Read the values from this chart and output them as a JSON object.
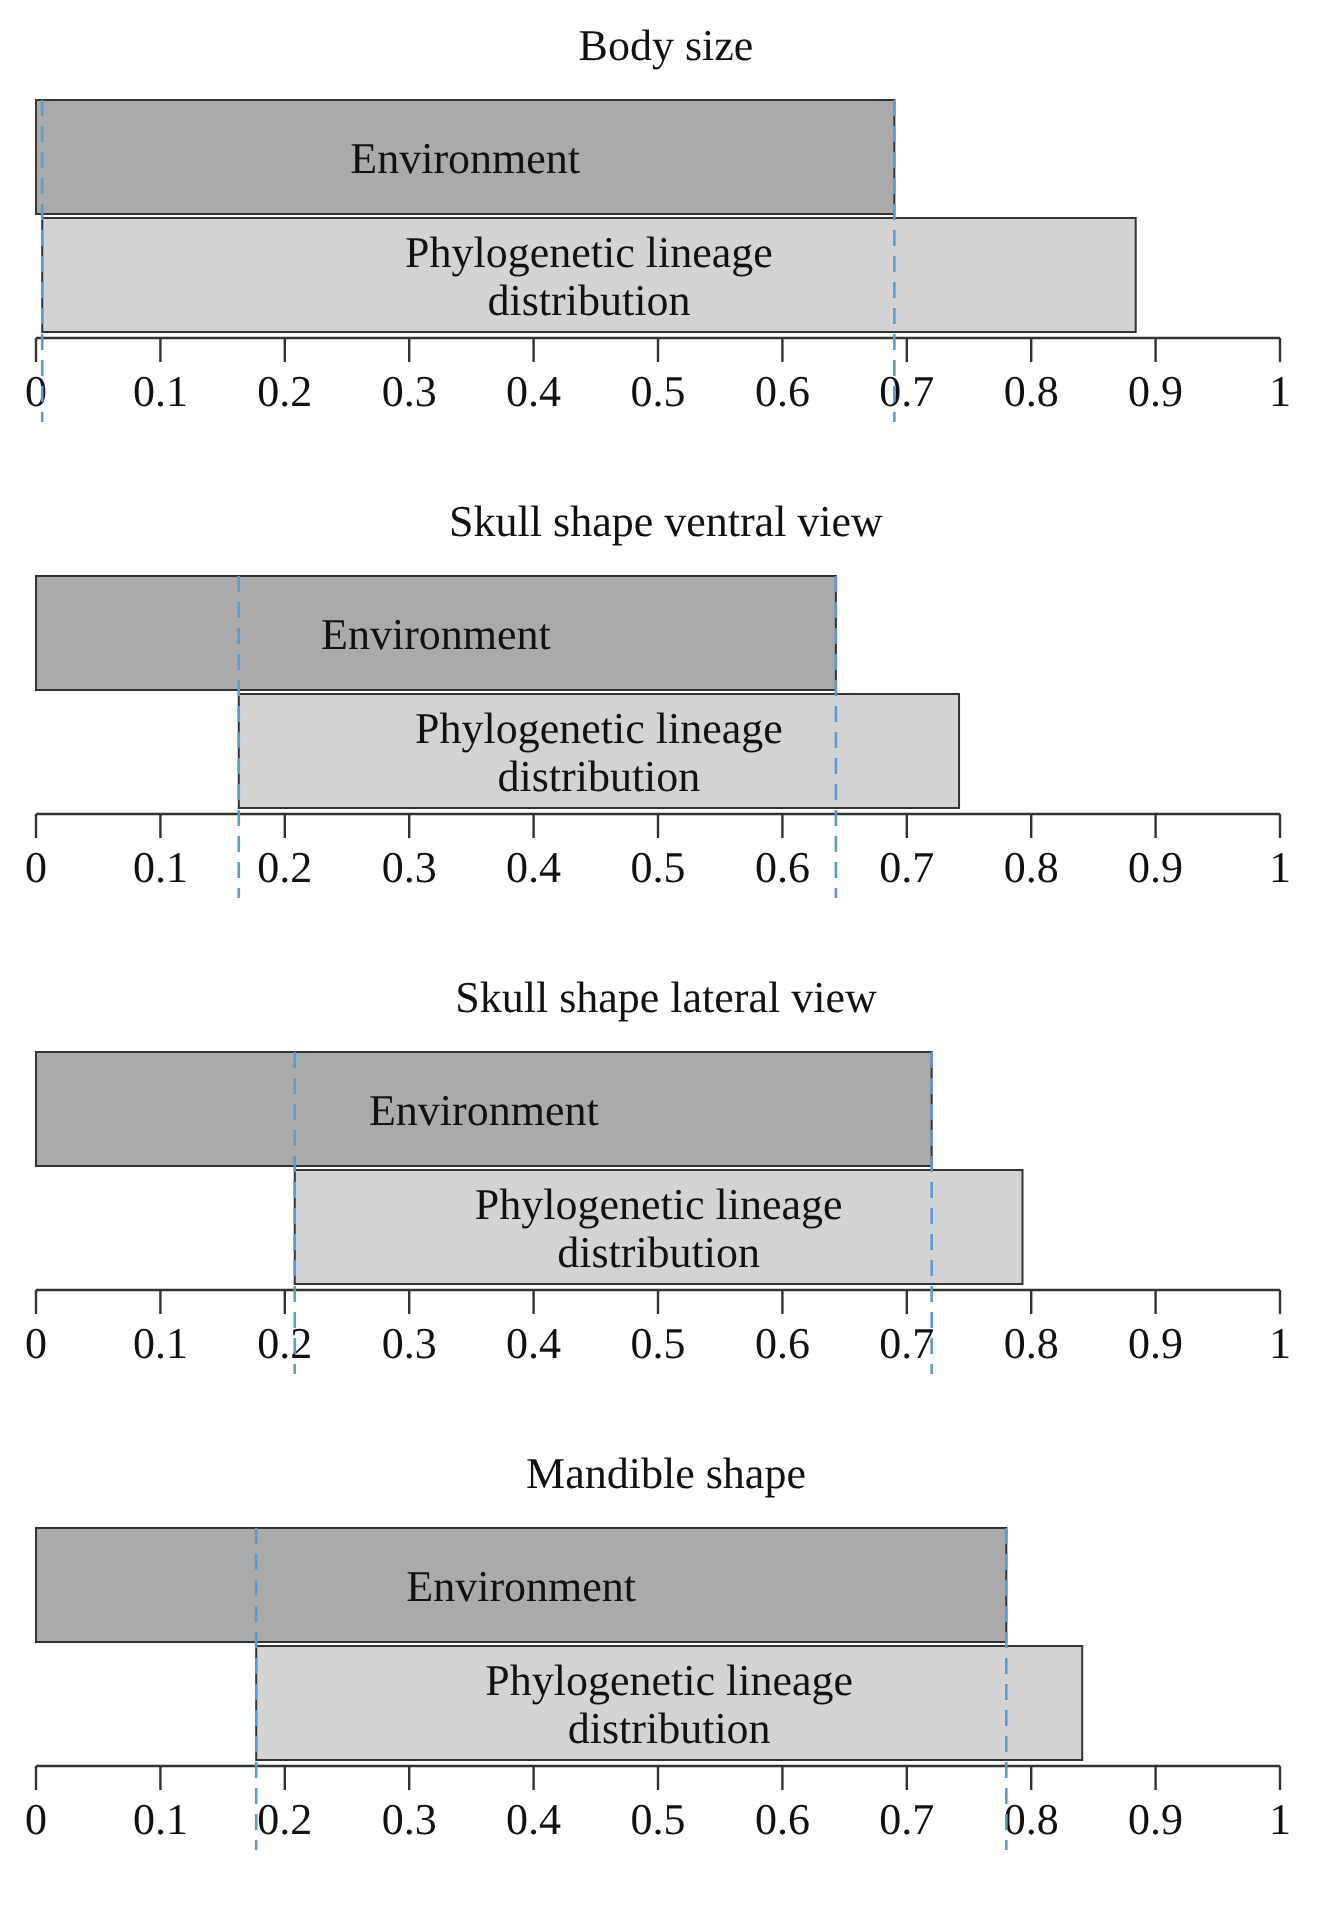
{
  "chart_data": [
    {
      "type": "bar",
      "orientation": "horizontal",
      "title": "Body size",
      "categories": [
        "Environment",
        "Phylogenetic lineage distribution"
      ],
      "base": [
        0,
        0.005
      ],
      "values": [
        0.69,
        0.879
      ],
      "colors": [
        "#a9aaa9",
        "#d3d3d3"
      ],
      "xlim": [
        0,
        1
      ],
      "xticks": [
        0,
        0.1,
        0.2,
        0.3,
        0.4,
        0.5,
        0.6,
        0.7,
        0.8,
        0.9,
        1
      ],
      "tick_labels": "x",
      "ref_lines": [
        {
          "axis": "x",
          "value": 0.005,
          "color": "#5b9bd5",
          "line_style": "dashed"
        },
        {
          "axis": "x",
          "value": 0.69,
          "color": "#5b9bd5",
          "line_style": "dashed"
        }
      ]
    },
    {
      "type": "bar",
      "orientation": "horizontal",
      "title": "Skull shape ventral view",
      "categories": [
        "Environment",
        "Phylogenetic lineage distribution"
      ],
      "base": [
        0,
        0.163
      ],
      "values": [
        0.643,
        0.579
      ],
      "colors": [
        "#a9aaa9",
        "#d3d3d3"
      ],
      "xlim": [
        0,
        1
      ],
      "xticks": [
        0,
        0.1,
        0.2,
        0.3,
        0.4,
        0.5,
        0.6,
        0.7,
        0.8,
        0.9,
        1
      ],
      "tick_labels": "x",
      "ref_lines": [
        {
          "axis": "x",
          "value": 0.163,
          "color": "#5b9bd5",
          "line_style": "dashed"
        },
        {
          "axis": "x",
          "value": 0.643,
          "color": "#5b9bd5",
          "line_style": "dashed"
        }
      ]
    },
    {
      "type": "bar",
      "orientation": "horizontal",
      "title": "Skull shape lateral view",
      "categories": [
        "Environment",
        "Phylogenetic lineage distribution"
      ],
      "base": [
        0,
        0.208
      ],
      "values": [
        0.72,
        0.585
      ],
      "colors": [
        "#a9aaa9",
        "#d3d3d3"
      ],
      "xlim": [
        0,
        1
      ],
      "xticks": [
        0,
        0.1,
        0.2,
        0.3,
        0.4,
        0.5,
        0.6,
        0.7,
        0.8,
        0.9,
        1
      ],
      "tick_labels": "x",
      "ref_lines": [
        {
          "axis": "x",
          "value": 0.208,
          "color": "#5b9bd5",
          "line_style": "dashed"
        },
        {
          "axis": "x",
          "value": 0.72,
          "color": "#5b9bd5",
          "line_style": "dashed"
        }
      ]
    },
    {
      "type": "bar",
      "orientation": "horizontal",
      "title": "Mandible shape",
      "categories": [
        "Environment",
        "Phylogenetic lineage distribution"
      ],
      "base": [
        0,
        0.177
      ],
      "values": [
        0.78,
        0.664
      ],
      "colors": [
        "#a9aaa9",
        "#d3d3d3"
      ],
      "xlim": [
        0,
        1
      ],
      "xticks": [
        0,
        0.1,
        0.2,
        0.3,
        0.4,
        0.5,
        0.6,
        0.7,
        0.8,
        0.9,
        1
      ],
      "tick_labels": "x",
      "ref_lines": [
        {
          "axis": "x",
          "value": 0.177,
          "color": "#5b9bd5",
          "line_style": "dashed"
        },
        {
          "axis": "x",
          "value": 0.78,
          "color": "#5b9bd5",
          "line_style": "dashed"
        }
      ]
    }
  ]
}
